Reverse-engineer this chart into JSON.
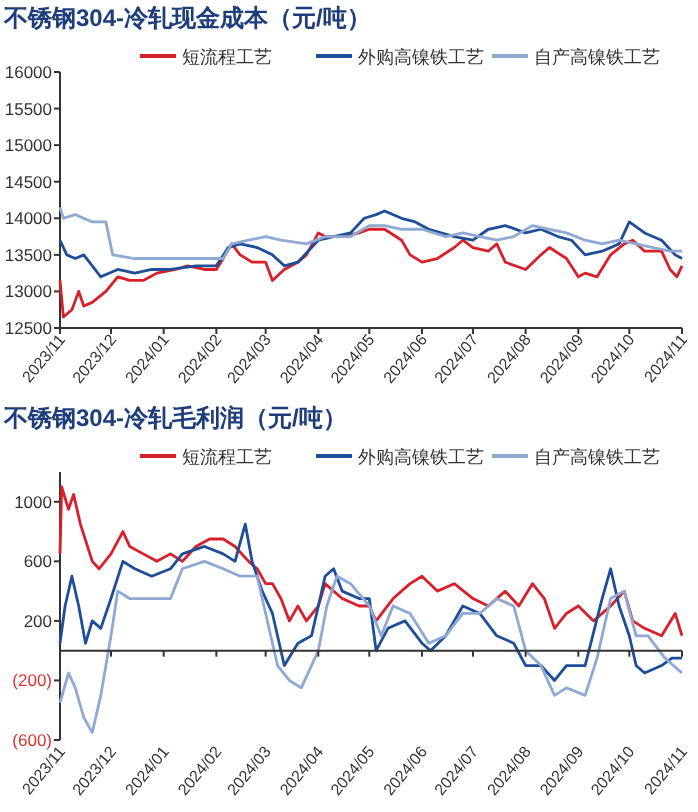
{
  "chart_data": [
    {
      "type": "line",
      "title": "不锈钢304-冷轧现金成本（元/吨）",
      "legend": "top",
      "grid": false,
      "xlim": [
        "2023-11-01",
        "2024-11-01"
      ],
      "xticks": [
        {
          "value": "2023-11-01",
          "label": "2023/11"
        },
        {
          "value": "2023-12-01",
          "label": "2023/12"
        },
        {
          "value": "2024-01-01",
          "label": "2024/01"
        },
        {
          "value": "2024-02-01",
          "label": "2024/02"
        },
        {
          "value": "2024-03-01",
          "label": "2024/03"
        },
        {
          "value": "2024-04-01",
          "label": "2024/04"
        },
        {
          "value": "2024-05-01",
          "label": "2024/05"
        },
        {
          "value": "2024-06-01",
          "label": "2024/06"
        },
        {
          "value": "2024-07-01",
          "label": "2024/07"
        },
        {
          "value": "2024-08-01",
          "label": "2024/08"
        },
        {
          "value": "2024-09-01",
          "label": "2024/09"
        },
        {
          "value": "2024-10-01",
          "label": "2024/10"
        },
        {
          "value": "2024-11-01",
          "label": "2024/11"
        }
      ],
      "ylim": [
        12500,
        16000
      ],
      "yticks": [
        12500,
        13000,
        13500,
        14000,
        14500,
        15000,
        15500,
        16000
      ],
      "series": [
        {
          "name": "短流程工艺",
          "color": "#d9202a",
          "x": [
            "2023-11-01",
            "2023-11-03",
            "2023-11-08",
            "2023-11-12",
            "2023-11-15",
            "2023-11-20",
            "2023-11-28",
            "2023-12-05",
            "2023-12-12",
            "2023-12-20",
            "2023-12-28",
            "2024-01-08",
            "2024-01-15",
            "2024-01-25",
            "2024-02-01",
            "2024-02-05",
            "2024-02-10",
            "2024-02-15",
            "2024-02-22",
            "2024-03-01",
            "2024-03-05",
            "2024-03-12",
            "2024-03-20",
            "2024-03-25",
            "2024-04-01",
            "2024-04-05",
            "2024-04-15",
            "2024-04-25",
            "2024-05-01",
            "2024-05-10",
            "2024-05-20",
            "2024-05-25",
            "2024-06-01",
            "2024-06-10",
            "2024-06-20",
            "2024-06-25",
            "2024-07-01",
            "2024-07-10",
            "2024-07-15",
            "2024-07-20",
            "2024-08-01",
            "2024-08-10",
            "2024-08-15",
            "2024-08-25",
            "2024-09-01",
            "2024-09-05",
            "2024-09-12",
            "2024-09-20",
            "2024-09-28",
            "2024-10-03",
            "2024-10-10",
            "2024-10-20",
            "2024-10-25",
            "2024-10-29",
            "2024-11-01"
          ],
          "values": [
            13150,
            12650,
            12750,
            13000,
            12800,
            12850,
            13000,
            13200,
            13150,
            13150,
            13250,
            13300,
            13350,
            13300,
            13300,
            13450,
            13650,
            13500,
            13400,
            13400,
            13150,
            13300,
            13400,
            13500,
            13800,
            13750,
            13750,
            13800,
            13850,
            13850,
            13700,
            13500,
            13400,
            13450,
            13600,
            13700,
            13600,
            13550,
            13650,
            13400,
            13300,
            13500,
            13600,
            13450,
            13200,
            13250,
            13200,
            13500,
            13650,
            13700,
            13550,
            13550,
            13300,
            13200,
            13350
          ]
        },
        {
          "name": "外购高镍铁工艺",
          "color": "#1f4e99",
          "x": [
            "2023-11-01",
            "2023-11-05",
            "2023-11-10",
            "2023-11-15",
            "2023-11-25",
            "2023-12-05",
            "2023-12-15",
            "2023-12-25",
            "2024-01-05",
            "2024-01-20",
            "2024-02-01",
            "2024-02-08",
            "2024-02-15",
            "2024-02-25",
            "2024-03-05",
            "2024-03-12",
            "2024-03-20",
            "2024-04-01",
            "2024-04-10",
            "2024-04-20",
            "2024-04-28",
            "2024-05-05",
            "2024-05-10",
            "2024-05-20",
            "2024-05-28",
            "2024-06-05",
            "2024-06-20",
            "2024-07-01",
            "2024-07-10",
            "2024-07-20",
            "2024-08-01",
            "2024-08-10",
            "2024-08-20",
            "2024-08-28",
            "2024-09-05",
            "2024-09-15",
            "2024-09-25",
            "2024-10-01",
            "2024-10-10",
            "2024-10-20",
            "2024-10-28",
            "2024-11-01"
          ],
          "values": [
            13700,
            13500,
            13450,
            13500,
            13200,
            13300,
            13250,
            13300,
            13300,
            13350,
            13350,
            13600,
            13650,
            13600,
            13500,
            13350,
            13400,
            13700,
            13750,
            13800,
            14000,
            14050,
            14100,
            14000,
            13950,
            13850,
            13750,
            13700,
            13850,
            13900,
            13800,
            13850,
            13750,
            13700,
            13500,
            13550,
            13650,
            13950,
            13800,
            13700,
            13500,
            13450
          ]
        },
        {
          "name": "自产高镍铁工艺",
          "color": "#8fa8d4",
          "x": [
            "2023-11-01",
            "2023-11-03",
            "2023-11-10",
            "2023-11-20",
            "2023-11-28",
            "2023-12-02",
            "2023-12-15",
            "2024-01-01",
            "2024-01-20",
            "2024-02-05",
            "2024-02-10",
            "2024-02-20",
            "2024-03-01",
            "2024-03-10",
            "2024-03-25",
            "2024-04-05",
            "2024-04-20",
            "2024-05-01",
            "2024-05-10",
            "2024-05-20",
            "2024-06-01",
            "2024-06-15",
            "2024-06-25",
            "2024-07-05",
            "2024-07-15",
            "2024-07-25",
            "2024-08-05",
            "2024-08-15",
            "2024-08-25",
            "2024-09-05",
            "2024-09-15",
            "2024-09-25",
            "2024-10-05",
            "2024-10-15",
            "2024-10-25",
            "2024-11-01"
          ],
          "values": [
            14150,
            14000,
            14050,
            13950,
            13950,
            13500,
            13450,
            13450,
            13450,
            13450,
            13650,
            13700,
            13750,
            13700,
            13650,
            13750,
            13750,
            13900,
            13900,
            13850,
            13850,
            13750,
            13800,
            13750,
            13700,
            13750,
            13900,
            13850,
            13800,
            13700,
            13650,
            13700,
            13650,
            13600,
            13550,
            13550
          ]
        }
      ]
    },
    {
      "type": "line",
      "title": "不锈钢304-冷轧毛利润（元/吨）",
      "legend": "top",
      "grid": false,
      "xlim": [
        "2023-11-01",
        "2024-11-01"
      ],
      "xticks": [
        {
          "value": "2023-11-01",
          "label": "2023/11"
        },
        {
          "value": "2023-12-01",
          "label": "2023/12"
        },
        {
          "value": "2024-01-01",
          "label": "2024/01"
        },
        {
          "value": "2024-02-01",
          "label": "2024/02"
        },
        {
          "value": "2024-03-01",
          "label": "2024/03"
        },
        {
          "value": "2024-04-01",
          "label": "2024/04"
        },
        {
          "value": "2024-05-01",
          "label": "2024/05"
        },
        {
          "value": "2024-06-01",
          "label": "2024/06"
        },
        {
          "value": "2024-07-01",
          "label": "2024/07"
        },
        {
          "value": "2024-08-01",
          "label": "2024/08"
        },
        {
          "value": "2024-09-01",
          "label": "2024/09"
        },
        {
          "value": "2024-10-01",
          "label": "2024/10"
        },
        {
          "value": "2024-11-01",
          "label": "2024/11"
        }
      ],
      "ylim": [
        -600,
        1200
      ],
      "yticks": [
        {
          "value": -600,
          "label": "(600)"
        },
        {
          "value": -200,
          "label": "(200)"
        },
        200,
        600,
        1000
      ],
      "series": [
        {
          "name": "短流程工艺",
          "color": "#d9202a",
          "x": [
            "2023-11-01",
            "2023-11-02",
            "2023-11-06",
            "2023-11-09",
            "2023-11-13",
            "2023-11-20",
            "2023-11-24",
            "2023-12-01",
            "2023-12-08",
            "2023-12-12",
            "2023-12-20",
            "2023-12-28",
            "2024-01-05",
            "2024-01-12",
            "2024-01-20",
            "2024-01-28",
            "2024-02-05",
            "2024-02-12",
            "2024-02-20",
            "2024-02-25",
            "2024-03-01",
            "2024-03-05",
            "2024-03-10",
            "2024-03-15",
            "2024-03-20",
            "2024-03-25",
            "2024-04-01",
            "2024-04-05",
            "2024-04-15",
            "2024-04-25",
            "2024-05-01",
            "2024-05-05",
            "2024-05-15",
            "2024-05-25",
            "2024-06-01",
            "2024-06-10",
            "2024-06-20",
            "2024-07-01",
            "2024-07-10",
            "2024-07-20",
            "2024-07-28",
            "2024-08-05",
            "2024-08-12",
            "2024-08-18",
            "2024-08-25",
            "2024-09-01",
            "2024-09-10",
            "2024-09-20",
            "2024-09-28",
            "2024-10-03",
            "2024-10-10",
            "2024-10-20",
            "2024-10-28",
            "2024-11-01"
          ],
          "values": [
            650,
            1100,
            950,
            1050,
            850,
            600,
            550,
            650,
            800,
            700,
            650,
            600,
            650,
            600,
            700,
            750,
            750,
            700,
            600,
            550,
            450,
            450,
            350,
            200,
            300,
            200,
            300,
            450,
            350,
            300,
            300,
            200,
            350,
            450,
            500,
            400,
            450,
            350,
            300,
            400,
            300,
            450,
            350,
            150,
            250,
            300,
            200,
            300,
            400,
            200,
            150,
            100,
            250,
            100
          ]
        },
        {
          "name": "外购高镍铁工艺",
          "color": "#1f4e99",
          "x": [
            "2023-11-01",
            "2023-11-04",
            "2023-11-08",
            "2023-11-12",
            "2023-11-16",
            "2023-11-20",
            "2023-11-25",
            "2023-12-01",
            "2023-12-08",
            "2023-12-15",
            "2023-12-25",
            "2024-01-05",
            "2024-01-12",
            "2024-01-25",
            "2024-02-05",
            "2024-02-12",
            "2024-02-18",
            "2024-02-22",
            "2024-02-28",
            "2024-03-05",
            "2024-03-12",
            "2024-03-20",
            "2024-03-28",
            "2024-04-05",
            "2024-04-10",
            "2024-04-15",
            "2024-04-25",
            "2024-05-01",
            "2024-05-05",
            "2024-05-12",
            "2024-05-22",
            "2024-06-01",
            "2024-06-06",
            "2024-06-15",
            "2024-06-25",
            "2024-07-05",
            "2024-07-15",
            "2024-07-25",
            "2024-08-01",
            "2024-08-10",
            "2024-08-18",
            "2024-08-25",
            "2024-09-05",
            "2024-09-15",
            "2024-09-20",
            "2024-09-25",
            "2024-10-01",
            "2024-10-05",
            "2024-10-10",
            "2024-10-20",
            "2024-10-26",
            "2024-11-01"
          ],
          "values": [
            50,
            300,
            500,
            300,
            50,
            200,
            150,
            350,
            600,
            550,
            500,
            550,
            650,
            700,
            650,
            600,
            850,
            600,
            400,
            250,
            -100,
            50,
            100,
            500,
            550,
            400,
            350,
            350,
            0,
            150,
            200,
            50,
            0,
            100,
            300,
            250,
            100,
            50,
            -100,
            -100,
            -200,
            -100,
            -100,
            350,
            550,
            300,
            100,
            -100,
            -150,
            -100,
            -50,
            -50
          ]
        },
        {
          "name": "自产高镍铁工艺",
          "color": "#8fa8d4",
          "x": [
            "2023-11-01",
            "2023-11-06",
            "2023-11-10",
            "2023-11-15",
            "2023-11-20",
            "2023-11-25",
            "2023-12-01",
            "2023-12-05",
            "2023-12-12",
            "2023-12-20",
            "2024-01-05",
            "2024-01-12",
            "2024-01-25",
            "2024-02-05",
            "2024-02-15",
            "2024-02-25",
            "2024-03-01",
            "2024-03-08",
            "2024-03-15",
            "2024-03-22",
            "2024-04-01",
            "2024-04-06",
            "2024-04-12",
            "2024-04-20",
            "2024-05-01",
            "2024-05-08",
            "2024-05-15",
            "2024-05-25",
            "2024-06-05",
            "2024-06-15",
            "2024-06-25",
            "2024-07-05",
            "2024-07-15",
            "2024-07-25",
            "2024-08-01",
            "2024-08-10",
            "2024-08-18",
            "2024-08-25",
            "2024-09-05",
            "2024-09-12",
            "2024-09-20",
            "2024-09-28",
            "2024-10-05",
            "2024-10-12",
            "2024-10-22",
            "2024-11-01"
          ],
          "values": [
            -350,
            -150,
            -250,
            -450,
            -550,
            -300,
            100,
            400,
            350,
            350,
            350,
            550,
            600,
            550,
            500,
            500,
            250,
            -100,
            -200,
            -250,
            0,
            300,
            500,
            450,
            300,
            100,
            300,
            250,
            50,
            100,
            250,
            250,
            350,
            300,
            0,
            -100,
            -300,
            -250,
            -300,
            -50,
            350,
            400,
            100,
            100,
            -50,
            -150
          ]
        }
      ]
    }
  ]
}
